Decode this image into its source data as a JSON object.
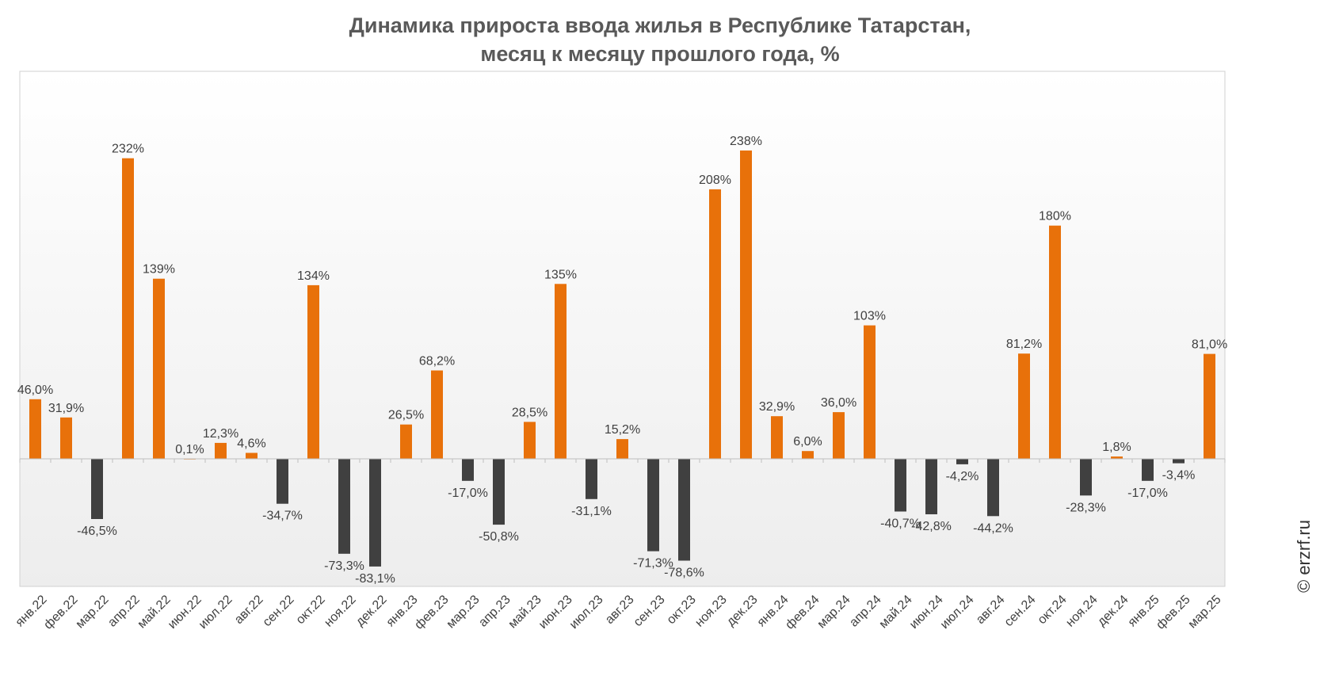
{
  "title": {
    "line1": "Динамика прироста ввода жилья в Республике Татарстан,",
    "line2": "месяц к месяцу прошлого года, %"
  },
  "watermark": "© erzrf.ru",
  "colors": {
    "positive": "#E8710A",
    "negative": "#404040",
    "label": "#404040",
    "title": "#595959",
    "axis": "#BFBFBF",
    "plot_top": "#FFFFFF",
    "plot_bottom": "#EDEDED"
  },
  "chart_data": {
    "type": "bar",
    "title": "Динамика прироста ввода жилья в Республике Татарстан, месяц к месяцу прошлого года, %",
    "xlabel": "",
    "ylabel": "",
    "grid": false,
    "ylim": [
      -100,
      300
    ],
    "categories": [
      "янв.22",
      "фев.22",
      "мар.22",
      "апр.22",
      "май.22",
      "июн.22",
      "июл.22",
      "авг.22",
      "сен.22",
      "окт.22",
      "ноя.22",
      "дек.22",
      "янв.23",
      "фев.23",
      "мар.23",
      "апр.23",
      "май.23",
      "июн.23",
      "июл.23",
      "авг.23",
      "сен.23",
      "окт.23",
      "ноя.23",
      "дек.23",
      "янв.24",
      "фев.24",
      "мар.24",
      "апр.24",
      "май.24",
      "июн.24",
      "июл.24",
      "авг.24",
      "сен.24",
      "окт.24",
      "ноя.24",
      "дек.24",
      "янв.25",
      "фев.25",
      "мар.25"
    ],
    "values": [
      46.0,
      31.9,
      -46.5,
      232,
      139,
      0.1,
      12.3,
      4.6,
      -34.7,
      134,
      -73.3,
      -83.1,
      26.5,
      68.2,
      -17.0,
      -50.8,
      28.5,
      135,
      -31.1,
      15.2,
      -71.3,
      -78.6,
      208,
      238,
      32.9,
      6.0,
      36.0,
      103,
      -40.7,
      -42.8,
      -4.2,
      -44.2,
      81.2,
      180,
      -28.3,
      1.8,
      -17.0,
      -3.4,
      81.0
    ],
    "labels": [
      "46,0%",
      "31,9%",
      "-46,5%",
      "232%",
      "139%",
      "0,1%",
      "12,3%",
      "4,6%",
      "-34,7%",
      "134%",
      "-73,3%",
      "-83,1%",
      "26,5%",
      "68,2%",
      "-17,0%",
      "-50,8%",
      "28,5%",
      "135%",
      "-31,1%",
      "15,2%",
      "-71,3%",
      "-78,6%",
      "208%",
      "238%",
      "32,9%",
      "6,0%",
      "36,0%",
      "103%",
      "-40,7%",
      "-42,8%",
      "-4,2%",
      "-44,2%",
      "81,2%",
      "180%",
      "-28,3%",
      "1,8%",
      "-17,0%",
      "-3,4%",
      "81,0%"
    ]
  }
}
